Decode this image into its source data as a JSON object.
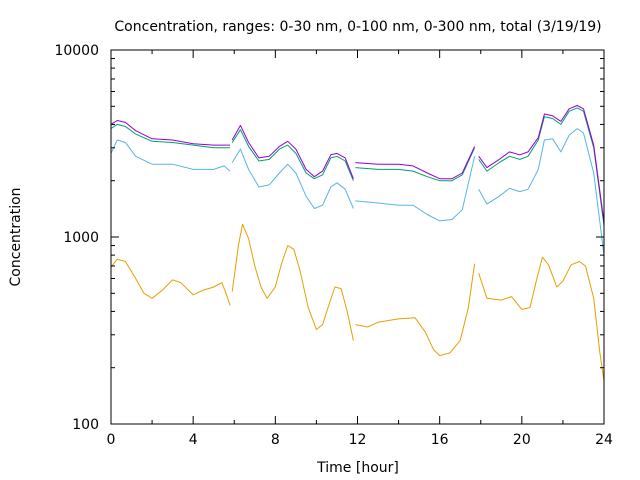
{
  "chart_data": {
    "type": "line",
    "title": "Concentration, ranges: 0-30 nm, 0-100 nm, 0-300 nm, total (3/19/19)",
    "xlabel": "Time [hour]",
    "ylabel": "Concentration",
    "xlim": [
      0,
      24
    ],
    "ylim": [
      100,
      10000
    ],
    "yscale": "log",
    "grid": false,
    "x_ticks": [
      0,
      4,
      8,
      12,
      16,
      20,
      24
    ],
    "x_tick_labels": [
      "0",
      "4",
      "8",
      "12",
      "16",
      "20",
      "24"
    ],
    "y_ticks": [
      100,
      1000,
      10000
    ],
    "y_tick_labels": [
      "100",
      "1000",
      "10000"
    ],
    "series": [
      {
        "color": "#e69f00",
        "segments": [
          [
            [
              0,
              690
            ],
            [
              0.3,
              760
            ],
            [
              0.7,
              740
            ],
            [
              1.2,
              600
            ],
            [
              1.6,
              500
            ],
            [
              2,
              470
            ],
            [
              2.5,
              520
            ],
            [
              3,
              590
            ],
            [
              3.4,
              570
            ],
            [
              4,
              490
            ],
            [
              4.5,
              520
            ],
            [
              5,
              540
            ],
            [
              5.4,
              570
            ],
            [
              5.6,
              500
            ],
            [
              5.8,
              430
            ]
          ],
          [
            [
              5.9,
              510
            ],
            [
              6.2,
              900
            ],
            [
              6.4,
              1170
            ],
            [
              6.7,
              980
            ],
            [
              7,
              700
            ],
            [
              7.3,
              540
            ],
            [
              7.6,
              470
            ],
            [
              8,
              540
            ],
            [
              8.3,
              720
            ],
            [
              8.6,
              900
            ],
            [
              8.9,
              860
            ],
            [
              9.2,
              660
            ],
            [
              9.6,
              420
            ],
            [
              10,
              320
            ],
            [
              10.3,
              340
            ],
            [
              10.6,
              430
            ],
            [
              10.9,
              540
            ],
            [
              11.2,
              530
            ],
            [
              11.5,
              400
            ],
            [
              11.8,
              280
            ]
          ],
          [
            [
              11.9,
              340
            ],
            [
              12.5,
              330
            ],
            [
              13,
              350
            ],
            [
              14,
              365
            ],
            [
              14.8,
              370
            ],
            [
              15.3,
              310
            ],
            [
              15.7,
              250
            ],
            [
              16,
              232
            ],
            [
              16.5,
              240
            ],
            [
              17,
              280
            ],
            [
              17.4,
              420
            ],
            [
              17.7,
              720
            ]
          ],
          [
            [
              17.9,
              640
            ],
            [
              18.3,
              470
            ],
            [
              19,
              460
            ],
            [
              19.5,
              480
            ],
            [
              20,
              410
            ],
            [
              20.4,
              420
            ],
            [
              20.7,
              580
            ],
            [
              21,
              780
            ],
            [
              21.3,
              710
            ],
            [
              21.7,
              540
            ],
            [
              22,
              580
            ],
            [
              22.4,
              710
            ],
            [
              22.8,
              740
            ],
            [
              23.1,
              700
            ],
            [
              23.5,
              470
            ],
            [
              23.8,
              240
            ],
            [
              24,
              170
            ]
          ]
        ]
      },
      {
        "color": "#56b4e9",
        "segments": [
          [
            [
              0,
              2800
            ],
            [
              0.3,
              3300
            ],
            [
              0.7,
              3200
            ],
            [
              1.2,
              2700
            ],
            [
              2,
              2450
            ],
            [
              3,
              2450
            ],
            [
              4,
              2300
            ],
            [
              5,
              2300
            ],
            [
              5.5,
              2400
            ],
            [
              5.8,
              2250
            ]
          ],
          [
            [
              5.9,
              2500
            ],
            [
              6.3,
              2950
            ],
            [
              6.7,
              2300
            ],
            [
              7.2,
              1850
            ],
            [
              7.7,
              1900
            ],
            [
              8.2,
              2200
            ],
            [
              8.6,
              2450
            ],
            [
              9,
              2200
            ],
            [
              9.5,
              1650
            ],
            [
              9.9,
              1420
            ],
            [
              10.3,
              1480
            ],
            [
              10.7,
              1850
            ],
            [
              11,
              1950
            ],
            [
              11.4,
              1800
            ],
            [
              11.8,
              1420
            ]
          ],
          [
            [
              11.9,
              1560
            ],
            [
              13,
              1520
            ],
            [
              14,
              1480
            ],
            [
              14.7,
              1480
            ],
            [
              15.4,
              1320
            ],
            [
              16,
              1220
            ],
            [
              16.6,
              1240
            ],
            [
              17.1,
              1400
            ],
            [
              17.7,
              2700
            ]
          ],
          [
            [
              17.9,
              1800
            ],
            [
              18.3,
              1500
            ],
            [
              18.9,
              1650
            ],
            [
              19.4,
              1820
            ],
            [
              19.9,
              1750
            ],
            [
              20.3,
              1800
            ],
            [
              20.8,
              2300
            ],
            [
              21.1,
              3300
            ],
            [
              21.5,
              3350
            ],
            [
              21.9,
              2850
            ],
            [
              22.3,
              3500
            ],
            [
              22.7,
              3800
            ],
            [
              23,
              3600
            ],
            [
              23.5,
              2200
            ],
            [
              24,
              800
            ]
          ]
        ]
      },
      {
        "color": "#009e73",
        "segments": [
          [
            [
              0,
              3800
            ],
            [
              0.3,
              4000
            ],
            [
              0.7,
              3900
            ],
            [
              1.2,
              3550
            ],
            [
              2,
              3250
            ],
            [
              3,
              3200
            ],
            [
              4,
              3100
            ],
            [
              5,
              3000
            ],
            [
              5.8,
              3000
            ]
          ],
          [
            [
              5.9,
              3200
            ],
            [
              6.3,
              3750
            ],
            [
              6.7,
              3050
            ],
            [
              7.2,
              2550
            ],
            [
              7.7,
              2600
            ],
            [
              8.2,
              2950
            ],
            [
              8.6,
              3100
            ],
            [
              9,
              2800
            ],
            [
              9.5,
              2200
            ],
            [
              9.9,
              2050
            ],
            [
              10.3,
              2150
            ],
            [
              10.7,
              2650
            ],
            [
              11,
              2700
            ],
            [
              11.4,
              2550
            ],
            [
              11.8,
              2000
            ]
          ],
          [
            [
              11.9,
              2350
            ],
            [
              13,
              2300
            ],
            [
              14,
              2300
            ],
            [
              14.7,
              2250
            ],
            [
              15.4,
              2100
            ],
            [
              16,
              2000
            ],
            [
              16.6,
              2000
            ],
            [
              17.1,
              2150
            ],
            [
              17.7,
              3000
            ]
          ],
          [
            [
              17.9,
              2600
            ],
            [
              18.3,
              2250
            ],
            [
              18.9,
              2500
            ],
            [
              19.4,
              2700
            ],
            [
              19.9,
              2600
            ],
            [
              20.3,
              2700
            ],
            [
              20.8,
              3300
            ],
            [
              21.1,
              4400
            ],
            [
              21.5,
              4300
            ],
            [
              21.9,
              4000
            ],
            [
              22.3,
              4700
            ],
            [
              22.7,
              4900
            ],
            [
              23,
              4700
            ],
            [
              23.5,
              3000
            ],
            [
              24,
              1150
            ]
          ]
        ]
      },
      {
        "color": "#9400d3",
        "segments": [
          [
            [
              0,
              4000
            ],
            [
              0.3,
              4200
            ],
            [
              0.7,
              4100
            ],
            [
              1.2,
              3700
            ],
            [
              2,
              3350
            ],
            [
              3,
              3300
            ],
            [
              4,
              3150
            ],
            [
              5,
              3100
            ],
            [
              5.8,
              3100
            ]
          ],
          [
            [
              5.9,
              3300
            ],
            [
              6.3,
              3950
            ],
            [
              6.7,
              3200
            ],
            [
              7.2,
              2650
            ],
            [
              7.7,
              2700
            ],
            [
              8.2,
              3050
            ],
            [
              8.6,
              3250
            ],
            [
              9,
              2950
            ],
            [
              9.5,
              2300
            ],
            [
              9.9,
              2100
            ],
            [
              10.3,
              2250
            ],
            [
              10.7,
              2750
            ],
            [
              11,
              2800
            ],
            [
              11.4,
              2650
            ],
            [
              11.8,
              2050
            ]
          ],
          [
            [
              11.9,
              2500
            ],
            [
              13,
              2450
            ],
            [
              14,
              2450
            ],
            [
              14.7,
              2400
            ],
            [
              15.4,
              2200
            ],
            [
              16,
              2050
            ],
            [
              16.6,
              2050
            ],
            [
              17.1,
              2200
            ],
            [
              17.7,
              3050
            ]
          ],
          [
            [
              17.9,
              2700
            ],
            [
              18.3,
              2350
            ],
            [
              18.9,
              2600
            ],
            [
              19.4,
              2850
            ],
            [
              19.9,
              2750
            ],
            [
              20.3,
              2850
            ],
            [
              20.8,
              3400
            ],
            [
              21.1,
              4550
            ],
            [
              21.5,
              4450
            ],
            [
              21.9,
              4150
            ],
            [
              22.3,
              4850
            ],
            [
              22.7,
              5050
            ],
            [
              23,
              4850
            ],
            [
              23.5,
              3100
            ],
            [
              24,
              1200
            ]
          ]
        ]
      }
    ]
  }
}
